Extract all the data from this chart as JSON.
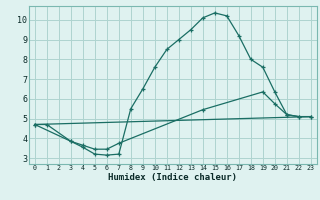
{
  "xlabel": "Humidex (Indice chaleur)",
  "bg_color": "#dff2f0",
  "grid_color": "#aed4cf",
  "line_color": "#1a6e64",
  "spine_color": "#7ab8b0",
  "xlim": [
    -0.5,
    23.5
  ],
  "ylim": [
    2.7,
    10.7
  ],
  "xticks": [
    0,
    1,
    2,
    3,
    4,
    5,
    6,
    7,
    8,
    9,
    10,
    11,
    12,
    13,
    14,
    15,
    16,
    17,
    18,
    19,
    20,
    21,
    22,
    23
  ],
  "yticks": [
    3,
    4,
    5,
    6,
    7,
    8,
    9,
    10
  ],
  "curve1_x": [
    0,
    1,
    3,
    4,
    5,
    6,
    7,
    8,
    9,
    10,
    11,
    12,
    13,
    14,
    15,
    16,
    17,
    18,
    19,
    20,
    21,
    22,
    23
  ],
  "curve1_y": [
    4.7,
    4.7,
    3.85,
    3.55,
    3.2,
    3.15,
    3.2,
    5.5,
    6.5,
    7.6,
    8.5,
    9.0,
    9.5,
    10.1,
    10.35,
    10.2,
    9.2,
    8.0,
    7.6,
    6.35,
    5.2,
    5.1,
    5.1
  ],
  "curve2_x": [
    0,
    3,
    4,
    5,
    6,
    7,
    14,
    19,
    20,
    21,
    22,
    23
  ],
  "curve2_y": [
    4.7,
    3.85,
    3.65,
    3.45,
    3.45,
    3.75,
    5.45,
    6.35,
    5.75,
    5.2,
    5.1,
    5.1
  ],
  "curve3_x": [
    0,
    23
  ],
  "curve3_y": [
    4.7,
    5.1
  ]
}
